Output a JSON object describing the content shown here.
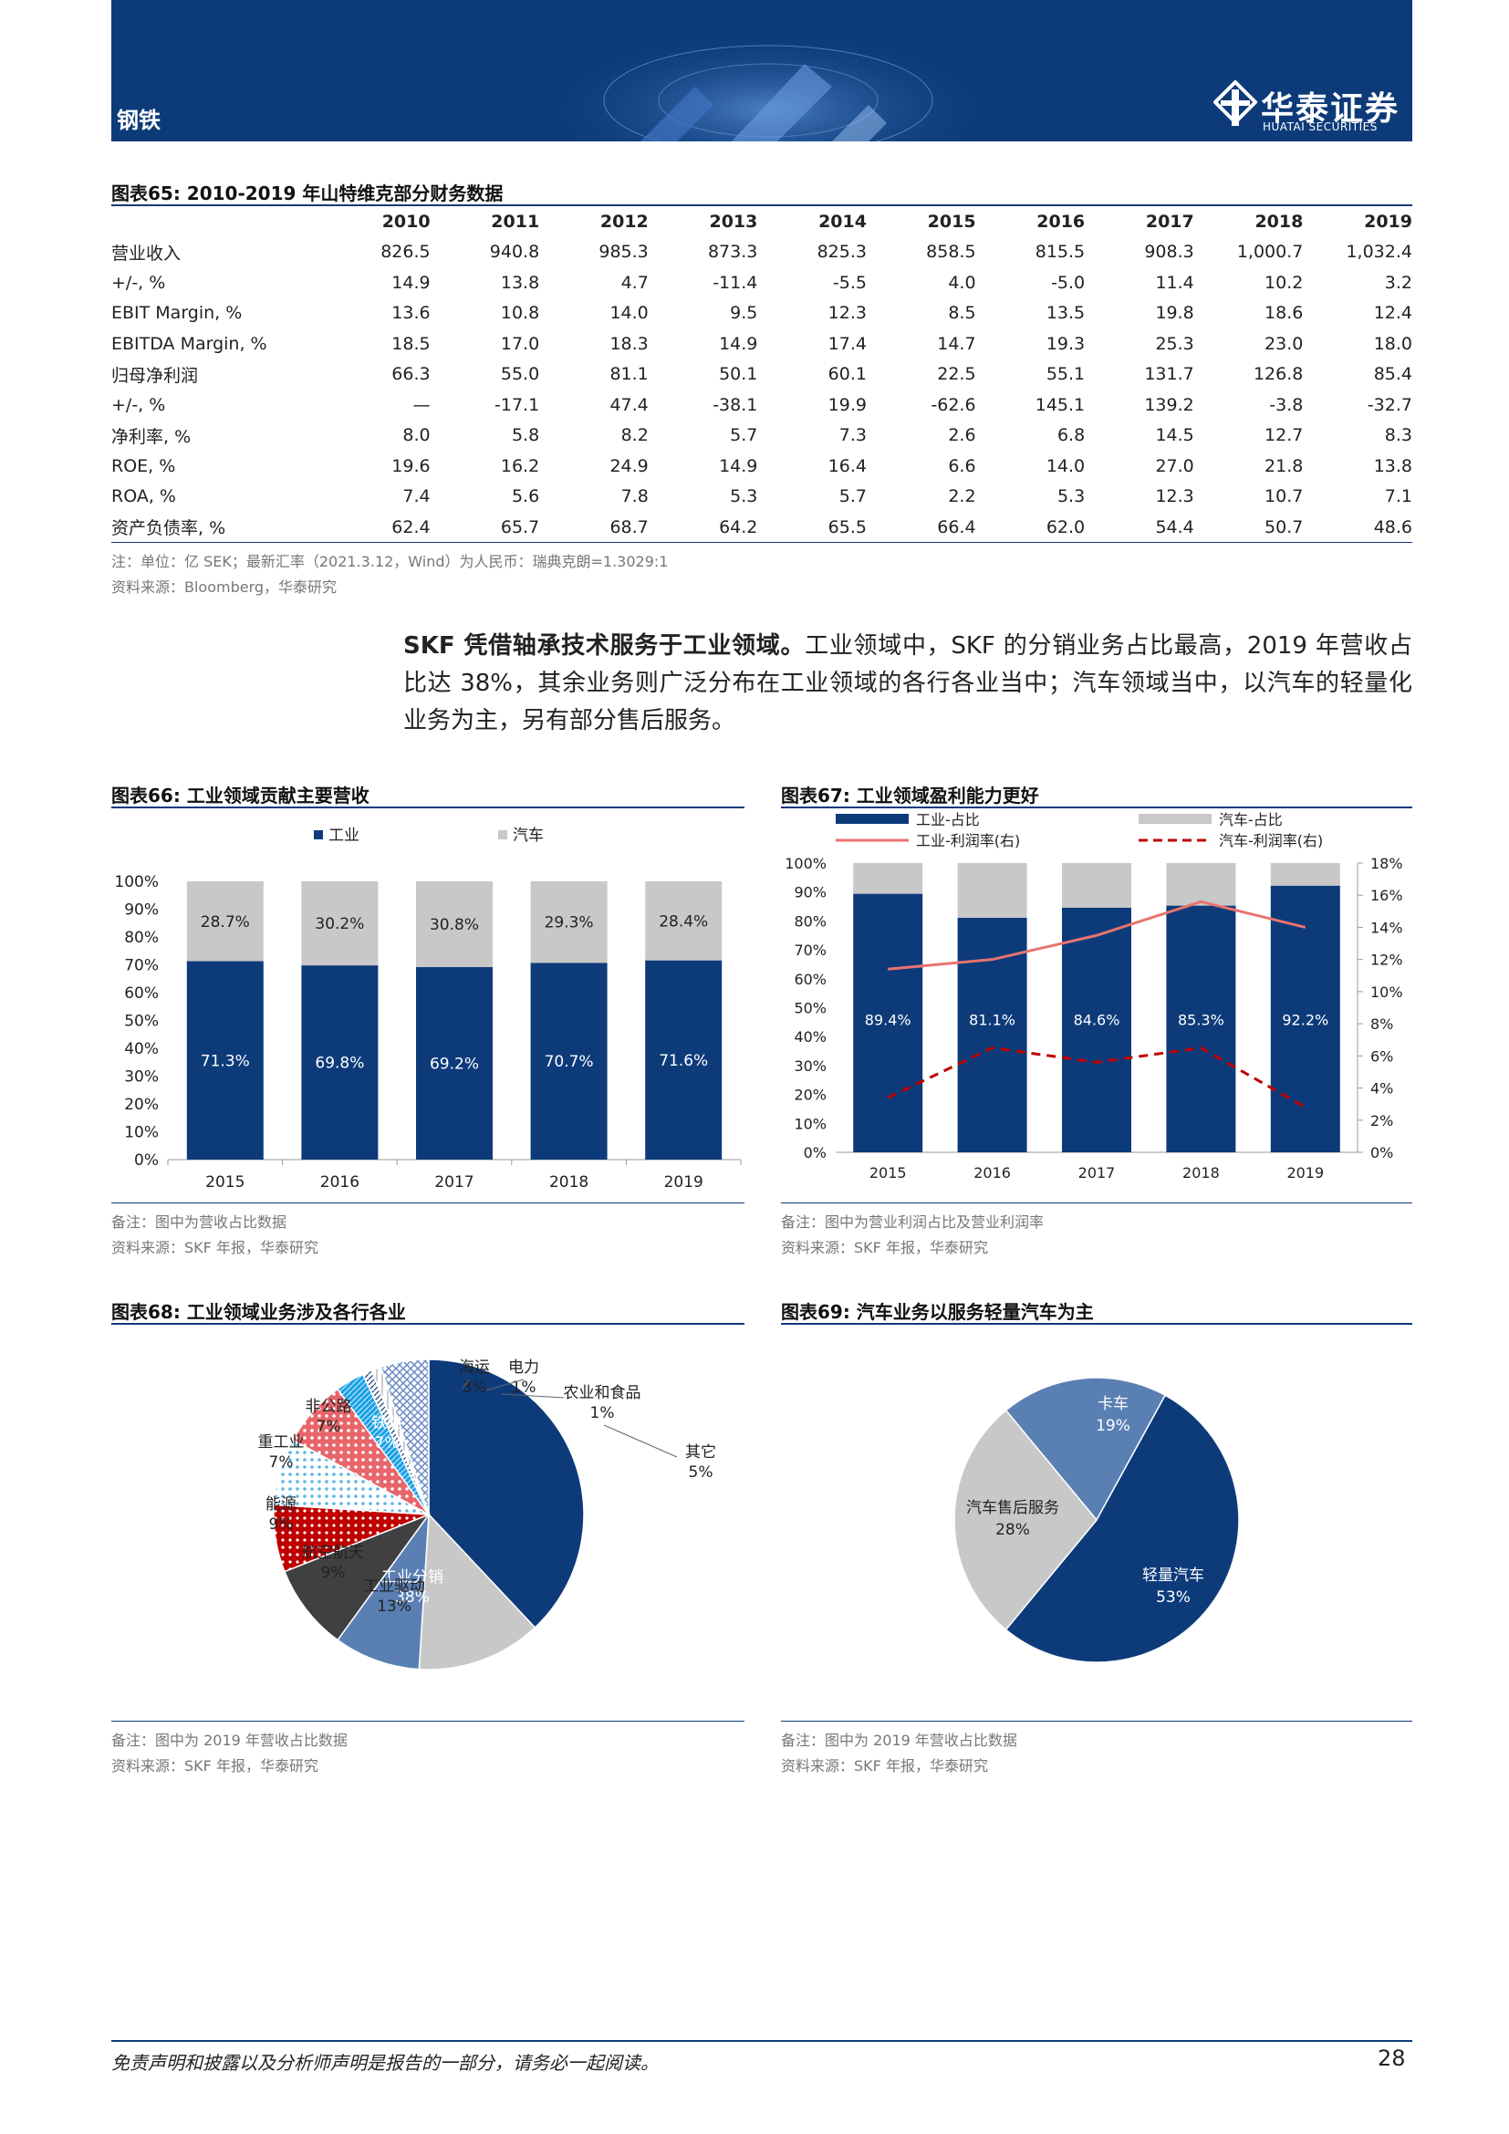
{
  "header": {
    "section": "钢铁",
    "brand": "华泰证券",
    "brand_en": "HUATAI SECURITIES"
  },
  "table65": {
    "title": "图表65:  2010-2019 年山特维克部分财务数据",
    "years": [
      "2010",
      "2011",
      "2012",
      "2013",
      "2014",
      "2015",
      "2016",
      "2017",
      "2018",
      "2019"
    ],
    "rows": [
      {
        "label": "营业收入",
        "values": [
          "826.5",
          "940.8",
          "985.3",
          "873.3",
          "825.3",
          "858.5",
          "815.5",
          "908.3",
          "1,000.7",
          "1,032.4"
        ]
      },
      {
        "label": "+/-, %",
        "values": [
          "14.9",
          "13.8",
          "4.7",
          "-11.4",
          "-5.5",
          "4.0",
          "-5.0",
          "11.4",
          "10.2",
          "3.2"
        ]
      },
      {
        "label": "EBIT Margin, %",
        "values": [
          "13.6",
          "10.8",
          "14.0",
          "9.5",
          "12.3",
          "8.5",
          "13.5",
          "19.8",
          "18.6",
          "12.4"
        ]
      },
      {
        "label": "EBITDA Margin, %",
        "values": [
          "18.5",
          "17.0",
          "18.3",
          "14.9",
          "17.4",
          "14.7",
          "19.3",
          "25.3",
          "23.0",
          "18.0"
        ]
      },
      {
        "label": "归母净利润",
        "values": [
          "66.3",
          "55.0",
          "81.1",
          "50.1",
          "60.1",
          "22.5",
          "55.1",
          "131.7",
          "126.8",
          "85.4"
        ]
      },
      {
        "label": "+/-, %",
        "values": [
          "—",
          "-17.1",
          "47.4",
          "-38.1",
          "19.9",
          "-62.6",
          "145.1",
          "139.2",
          "-3.8",
          "-32.7"
        ]
      },
      {
        "label": "净利率, %",
        "values": [
          "8.0",
          "5.8",
          "8.2",
          "5.7",
          "7.3",
          "2.6",
          "6.8",
          "14.5",
          "12.7",
          "8.3"
        ]
      },
      {
        "label": "ROE, %",
        "values": [
          "19.6",
          "16.2",
          "24.9",
          "14.9",
          "16.4",
          "6.6",
          "14.0",
          "27.0",
          "21.8",
          "13.8"
        ]
      },
      {
        "label": "ROA, %",
        "values": [
          "7.4",
          "5.6",
          "7.8",
          "5.3",
          "5.7",
          "2.2",
          "5.3",
          "12.3",
          "10.7",
          "7.1"
        ]
      },
      {
        "label": "资产负债率, %",
        "values": [
          "62.4",
          "65.7",
          "68.7",
          "64.2",
          "65.5",
          "66.4",
          "62.0",
          "54.4",
          "50.7",
          "48.6"
        ]
      }
    ],
    "note": "注：单位：亿 SEK；最新汇率（2021.3.12，Wind）为人民币：瑞典克朗=1.3029:1",
    "source": "资料来源：Bloomberg，华泰研究"
  },
  "paragraph": {
    "bold": "SKF 凭借轴承技术服务于工业领域。",
    "text": "工业领域中，SKF 的分销业务占比最高，2019 年营收占比达 38%，其余业务则广泛分布在工业领域的各行各业当中；汽车领域当中，以汽车的轻量化业务为主，另有部分售后服务。"
  },
  "fig66": {
    "title": "图表66:   工业领域贡献主要营收",
    "note": "备注：图中为营收占比数据",
    "source": "资料来源：SKF 年报，华泰研究"
  },
  "fig67": {
    "title": "图表67:   工业领域盈利能力更好",
    "note": "备注：图中为营业利润占比及营业利润率",
    "source": "资料来源：SKF 年报，华泰研究"
  },
  "fig68": {
    "title": "图表68:   工业领域业务涉及各行各业",
    "note": "备注：图中为 2019 年营收占比数据",
    "source": "资料来源：SKF 年报，华泰研究"
  },
  "fig69": {
    "title": "图表69:   汽车业务以服务轻量汽车为主",
    "note": "备注：图中为 2019 年营收占比数据",
    "source": "资料来源：SKF 年报，华泰研究"
  },
  "footer": {
    "disclaimer": "免责声明和披露以及分析师声明是报告的一部分，请务必一起阅读。",
    "page": "28"
  },
  "colors": {
    "navy": "#0d3b7a",
    "grey": "#c8c8c8",
    "red": "#e8736f",
    "darkred": "#c00000"
  },
  "chart_data": [
    {
      "type": "bar",
      "stacked": true,
      "categories": [
        "2015",
        "2016",
        "2017",
        "2018",
        "2019"
      ],
      "series": [
        {
          "name": "工业",
          "values": [
            71.3,
            69.8,
            69.2,
            70.7,
            71.6
          ],
          "labels": [
            "71.3%",
            "69.8%",
            "69.2%",
            "70.7%",
            "71.6%"
          ]
        },
        {
          "name": "汽车",
          "values": [
            28.7,
            30.2,
            30.8,
            29.3,
            28.4
          ],
          "labels": [
            "28.7%",
            "30.2%",
            "30.8%",
            "29.3%",
            "28.4%"
          ]
        }
      ],
      "yticks": [
        "0%",
        "10%",
        "20%",
        "30%",
        "40%",
        "50%",
        "60%",
        "70%",
        "80%",
        "90%",
        "100%"
      ],
      "ylim": [
        0,
        100
      ],
      "legend": "top"
    },
    {
      "type": "bar",
      "stacked": true,
      "categories": [
        "2015",
        "2016",
        "2017",
        "2018",
        "2019"
      ],
      "series": [
        {
          "name": "工业-占比",
          "values": [
            89.4,
            81.1,
            84.6,
            85.3,
            92.2
          ],
          "labels": [
            "89.4%",
            "81.1%",
            "84.6%",
            "85.3%",
            "92.2%"
          ]
        },
        {
          "name": "汽车-占比",
          "values": [
            10.6,
            18.9,
            15.4,
            14.7,
            7.8
          ]
        },
        {
          "name": "工业-利润率(右)",
          "type": "line",
          "axis": "right",
          "values": [
            11.4,
            12.0,
            13.5,
            15.6,
            14.0
          ]
        },
        {
          "name": "汽车-利润率(右)",
          "type": "line",
          "axis": "right",
          "dashed": true,
          "values": [
            3.4,
            6.5,
            5.6,
            6.5,
            2.8
          ]
        }
      ],
      "yticks": [
        "0%",
        "10%",
        "20%",
        "30%",
        "40%",
        "50%",
        "60%",
        "70%",
        "80%",
        "90%",
        "100%"
      ],
      "y2ticks": [
        "0%",
        "2%",
        "4%",
        "6%",
        "8%",
        "10%",
        "12%",
        "14%",
        "16%",
        "18%"
      ],
      "ylim": [
        0,
        100
      ],
      "y2lim": [
        0,
        18
      ],
      "legend": "top"
    },
    {
      "type": "pie",
      "labels": [
        "工业分销",
        "工业驱动",
        "航空航天",
        "能源",
        "重工业",
        "非公路",
        "铁路",
        "海运",
        "电力",
        "农业和食品",
        "其它"
      ],
      "values": [
        38,
        13,
        9,
        9,
        7,
        7,
        7,
        3,
        1,
        1,
        5
      ],
      "value_labels": [
        "38%",
        "13%",
        "9%",
        "9%",
        "7%",
        "7%",
        "7%",
        "3%",
        "1%",
        "1%",
        "5%"
      ]
    },
    {
      "type": "pie",
      "labels": [
        "卡车",
        "轻量汽车",
        "汽车售后服务"
      ],
      "values": [
        19,
        53,
        28
      ],
      "value_labels": [
        "19%",
        "53%",
        "28%"
      ]
    }
  ]
}
